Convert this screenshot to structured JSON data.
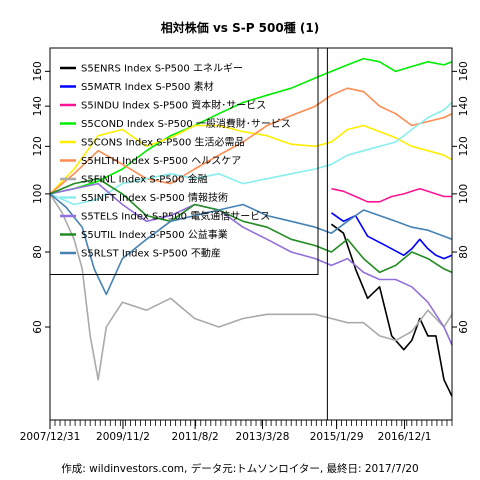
{
  "chart_data": {
    "type": "line",
    "title": "相対株価 vs S-P 500種 (1)",
    "credit": "作成: wildinvestors.com, データ元:トムソンロイター, 最終日: 2017/7/20",
    "x_tick_labels": [
      "2007/12/31",
      "2009/11/2",
      "2011/8/2",
      "2013/3/28",
      "2015/1/29",
      "2016/12/1"
    ],
    "x_tick_pos": [
      0.0,
      0.1815,
      0.361,
      0.5285,
      0.713,
      0.882
    ],
    "y_ticks": [
      60,
      80,
      100,
      120,
      140,
      160
    ],
    "ylim": [
      42,
      175
    ],
    "y_scale": "log",
    "xlim": [
      0,
      1
    ],
    "vline_x": 0.69,
    "grid": false,
    "legend_position": "top-left",
    "series": [
      {
        "name": "S5ENRS Index S-P500 エネルギー",
        "color": "#000000",
        "x": [
          0.7,
          0.73,
          0.76,
          0.79,
          0.82,
          0.85,
          0.88,
          0.9,
          0.92,
          0.94,
          0.96,
          0.98,
          1.0
        ],
        "y": [
          89,
          86,
          75,
          67,
          70,
          58,
          55,
          57,
          62,
          58,
          58,
          49,
          46
        ]
      },
      {
        "name": "S5MATR Index S-P500 素材",
        "color": "#0000ff",
        "x": [
          0.7,
          0.73,
          0.76,
          0.79,
          0.82,
          0.85,
          0.88,
          0.9,
          0.92,
          0.94,
          0.96,
          0.98,
          1.0
        ],
        "y": [
          93,
          90,
          92,
          85,
          83,
          81,
          79,
          81,
          84,
          81,
          79,
          78,
          79
        ]
      },
      {
        "name": "S5INDU Index S-P500 資本財･サービス",
        "color": "#ff1493",
        "x": [
          0.7,
          0.73,
          0.76,
          0.79,
          0.82,
          0.85,
          0.88,
          0.9,
          0.92,
          0.94,
          0.96,
          0.98,
          1.0
        ],
        "y": [
          102,
          101,
          99,
          97,
          97,
          99,
          100,
          101,
          102,
          101,
          100,
          99,
          99
        ]
      },
      {
        "name": "S5COND Index S-P500 一般消費財･サービス",
        "color": "#00ee00",
        "x": [
          0.0,
          0.06,
          0.12,
          0.18,
          0.24,
          0.3,
          0.36,
          0.42,
          0.48,
          0.54,
          0.6,
          0.66,
          0.7,
          0.74,
          0.78,
          0.82,
          0.86,
          0.9,
          0.94,
          0.98,
          1.0
        ],
        "y": [
          100,
          102,
          105,
          110,
          118,
          125,
          130,
          136,
          142,
          146,
          150,
          156,
          160,
          164,
          168,
          166,
          160,
          163,
          166,
          164,
          166
        ]
      },
      {
        "name": "S5CONS Index S-P500 生活必需品",
        "color": "#ffee00",
        "x": [
          0.0,
          0.06,
          0.12,
          0.18,
          0.24,
          0.3,
          0.36,
          0.42,
          0.48,
          0.54,
          0.6,
          0.66,
          0.7,
          0.74,
          0.78,
          0.82,
          0.86,
          0.9,
          0.94,
          0.98,
          1.0
        ],
        "y": [
          100,
          110,
          125,
          128,
          120,
          124,
          130,
          130,
          127,
          125,
          121,
          120,
          122,
          128,
          130,
          127,
          124,
          120,
          118,
          116,
          114
        ]
      },
      {
        "name": "S5HLTH Index S-P500 ヘルスケア",
        "color": "#ff8c50",
        "x": [
          0.0,
          0.06,
          0.12,
          0.18,
          0.24,
          0.3,
          0.36,
          0.42,
          0.48,
          0.54,
          0.6,
          0.66,
          0.7,
          0.74,
          0.78,
          0.82,
          0.86,
          0.9,
          0.94,
          0.98,
          1.0
        ],
        "y": [
          100,
          108,
          118,
          112,
          106,
          104,
          110,
          116,
          122,
          130,
          135,
          140,
          146,
          150,
          148,
          140,
          136,
          130,
          132,
          134,
          136
        ]
      },
      {
        "name": "S5FINL Index S-P500 金融",
        "color": "#aaaaaa",
        "x": [
          0.0,
          0.03,
          0.06,
          0.08,
          0.1,
          0.12,
          0.14,
          0.18,
          0.24,
          0.3,
          0.36,
          0.42,
          0.48,
          0.54,
          0.6,
          0.66,
          0.7,
          0.74,
          0.78,
          0.82,
          0.86,
          0.9,
          0.94,
          0.98,
          1.0
        ],
        "y": [
          100,
          93,
          84,
          75,
          58,
          49,
          60,
          66,
          64,
          67,
          62,
          60,
          62,
          63,
          63,
          63,
          62,
          61,
          61,
          58,
          57,
          59,
          64,
          60,
          63
        ]
      },
      {
        "name": "S5INFT Index S-P500 情報技術",
        "color": "#88eeee",
        "x": [
          0.0,
          0.06,
          0.12,
          0.18,
          0.24,
          0.3,
          0.36,
          0.42,
          0.48,
          0.54,
          0.6,
          0.66,
          0.7,
          0.74,
          0.78,
          0.82,
          0.86,
          0.9,
          0.94,
          0.98,
          1.0
        ],
        "y": [
          100,
          96,
          98,
          104,
          106,
          108,
          106,
          108,
          104,
          106,
          108,
          110,
          112,
          116,
          118,
          120,
          122,
          128,
          134,
          138,
          142
        ]
      },
      {
        "name": "S5TELS Index S-P500 電気通信サービス",
        "color": "#9370db",
        "x": [
          0.0,
          0.06,
          0.12,
          0.18,
          0.24,
          0.3,
          0.36,
          0.42,
          0.48,
          0.54,
          0.6,
          0.66,
          0.7,
          0.74,
          0.78,
          0.82,
          0.86,
          0.9,
          0.94,
          0.98,
          1.0
        ],
        "y": [
          100,
          102,
          104,
          96,
          90,
          92,
          96,
          94,
          88,
          84,
          80,
          78,
          76,
          78,
          74,
          72,
          72,
          70,
          66,
          60,
          56
        ]
      },
      {
        "name": "S5UTIL Index S-P500 公益事業",
        "color": "#228b22",
        "x": [
          0.0,
          0.06,
          0.12,
          0.18,
          0.24,
          0.3,
          0.36,
          0.42,
          0.48,
          0.54,
          0.6,
          0.66,
          0.7,
          0.74,
          0.78,
          0.82,
          0.86,
          0.9,
          0.94,
          0.98,
          1.0
        ],
        "y": [
          100,
          104,
          106,
          100,
          92,
          90,
          96,
          94,
          90,
          88,
          84,
          82,
          80,
          84,
          78,
          74,
          76,
          80,
          78,
          75,
          74
        ]
      },
      {
        "name": "S5RLST Index S-P500 不動産",
        "color": "#4682b4",
        "x": [
          0.0,
          0.04,
          0.08,
          0.11,
          0.14,
          0.18,
          0.24,
          0.3,
          0.36,
          0.42,
          0.48,
          0.54,
          0.6,
          0.66,
          0.7,
          0.74,
          0.78,
          0.82,
          0.86,
          0.9,
          0.94,
          0.98,
          1.0
        ],
        "y": [
          100,
          95,
          88,
          75,
          68,
          78,
          84,
          90,
          92,
          94,
          96,
          92,
          90,
          88,
          86,
          90,
          94,
          92,
          90,
          88,
          87,
          85,
          84
        ]
      }
    ]
  }
}
